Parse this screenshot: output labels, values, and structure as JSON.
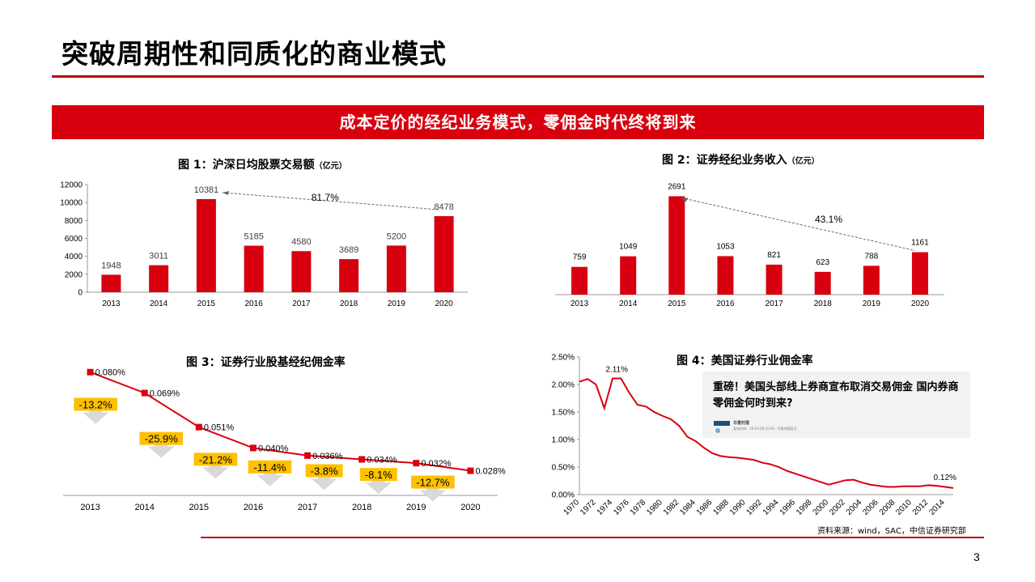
{
  "page": {
    "title": "突破周期性和同质化的商业模式",
    "banner": "成本定价的经纪业务模式，零佣金时代终将到来",
    "source": "资料来源：wind，SAC，中信证券研究部",
    "page_number": "3"
  },
  "colors": {
    "red": "#d8000f",
    "rule_red": "#c00000",
    "highlight": "#ffc000",
    "arrow_gray": "#d9d9d9"
  },
  "news": {
    "headline": "重磅！美国头部线上券商宣布取消交易佣金 国内券商零佣金何时到来?",
    "source": "华夏时报",
    "meta": "发布时间：19-10-08 10:04 · 华夏时报官方"
  },
  "chart_data": [
    {
      "type": "bar",
      "title": "图 1：沪深日均股票交易额",
      "unit": "（亿元）",
      "categories": [
        "2013",
        "2014",
        "2015",
        "2016",
        "2017",
        "2018",
        "2019",
        "2020"
      ],
      "values": [
        1948,
        3011,
        10381,
        5185,
        4580,
        3689,
        5200,
        8478
      ],
      "ylim": [
        0,
        12000
      ],
      "yticks": [
        "0",
        "2000",
        "4000",
        "6000",
        "8000",
        "10000",
        "12000"
      ],
      "annotation": "81.7%",
      "grid": false
    },
    {
      "type": "bar",
      "title": "图 2：证券经纪业务收入",
      "unit": "（亿元）",
      "categories": [
        "2013",
        "2014",
        "2015",
        "2016",
        "2017",
        "2018",
        "2019",
        "2020"
      ],
      "values": [
        759,
        1049,
        2691,
        1053,
        821,
        623,
        788,
        1161
      ],
      "ylim": [
        0,
        2900
      ],
      "annotation": "43.1%",
      "grid": false
    },
    {
      "type": "line",
      "title": "图 3：证券行业股基经纪佣金率",
      "categories": [
        "2013",
        "2014",
        "2015",
        "2016",
        "2017",
        "2018",
        "2019",
        "2020"
      ],
      "values": [
        0.08,
        0.069,
        0.051,
        0.04,
        0.036,
        0.034,
        0.032,
        0.028
      ],
      "value_labels": [
        "0.080%",
        "0.069%",
        "0.051%",
        "0.040%",
        "0.036%",
        "0.034%",
        "0.032%",
        "0.028%"
      ],
      "changes": [
        "-13.2%",
        "-25.9%",
        "-21.2%",
        "-11.4%",
        "-3.8%",
        "-8.1%",
        "-12.7%"
      ],
      "ylim": [
        0.015,
        0.085
      ]
    },
    {
      "type": "line",
      "title": "图 4：美国证券行业佣金率",
      "x": [
        1970,
        1971,
        1972,
        1973,
        1974,
        1975,
        1976,
        1977,
        1978,
        1979,
        1980,
        1981,
        1982,
        1983,
        1984,
        1985,
        1986,
        1987,
        1988,
        1989,
        1990,
        1991,
        1992,
        1993,
        1994,
        1995,
        1996,
        1997,
        1998,
        1999,
        2000,
        2001,
        2002,
        2003,
        2004,
        2005,
        2006,
        2007,
        2008,
        2009,
        2010,
        2011,
        2012,
        2013,
        2014,
        2015
      ],
      "values": [
        2.05,
        2.1,
        2.0,
        1.57,
        2.11,
        2.11,
        1.85,
        1.63,
        1.6,
        1.5,
        1.43,
        1.37,
        1.25,
        1.05,
        0.97,
        0.85,
        0.75,
        0.7,
        0.68,
        0.67,
        0.65,
        0.63,
        0.58,
        0.55,
        0.5,
        0.43,
        0.38,
        0.33,
        0.28,
        0.23,
        0.18,
        0.22,
        0.26,
        0.27,
        0.22,
        0.18,
        0.16,
        0.14,
        0.14,
        0.15,
        0.15,
        0.15,
        0.17,
        0.16,
        0.14,
        0.12
      ],
      "xticks": [
        "1970",
        "1972",
        "1974",
        "1976",
        "1978",
        "1980",
        "1982",
        "1984",
        "1986",
        "1988",
        "1990",
        "1992",
        "1994",
        "1996",
        "1998",
        "2000",
        "2002",
        "2004",
        "2006",
        "2008",
        "2010",
        "2012",
        "2014"
      ],
      "yticks": [
        "0.00%",
        "0.50%",
        "1.00%",
        "1.50%",
        "2.00%",
        "2.50%"
      ],
      "ylim": [
        0,
        2.5
      ],
      "annotations": [
        "2.11%",
        "0.12%"
      ]
    }
  ]
}
